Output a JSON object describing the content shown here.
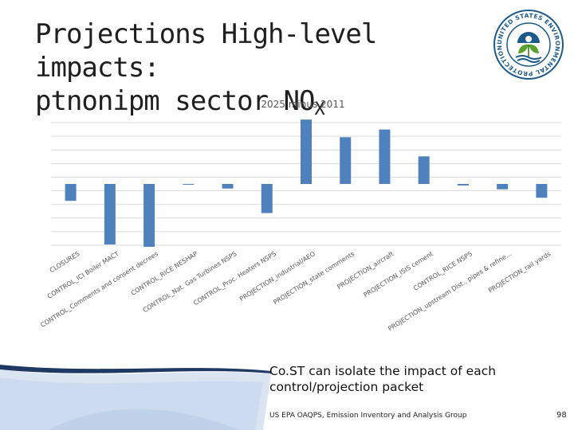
{
  "slide": {
    "title_line1": "Projections High-level impacts:",
    "title_line2": "ptnonipm sector NO",
    "title_subscript": "X",
    "caption": "Co.ST can isolate the impact of each control/projection packet",
    "footer": "US EPA OAQPS, Emission Inventory and Analysis Group",
    "page_number": "98",
    "logo_text": "UNITED STATES ENVIRONMENTAL PROTECTION AGENCY"
  },
  "colors": {
    "bar": "#4f81bd",
    "grid": "#d9d9d9"
  },
  "chart_data": {
    "type": "bar",
    "title": "2025 minus 2011",
    "xlabel": "",
    "ylabel": "",
    "ylim": [
      -8000,
      8000
    ],
    "grid": true,
    "categories": [
      "CLOSURES",
      "CONTROL_ICI Boiler MACT",
      "CONTROL_Comments and consent decrees",
      "CONTROL_RICE NESHAP",
      "CONTROL_Nat. Gas Turbines NSPS",
      "CONTROL_Proc. Heaters NSPS",
      "PROJECTION_industrial/AEO",
      "PROJECTION_state comments",
      "PROJECTION_aircraft",
      "PROJECTION_ISIS cement",
      "CONTROL_RICE NSPS",
      "PROJECTION_upstream Dist., pipes & refine...",
      "PROJECTION_rail yards"
    ],
    "values": [
      -2200,
      -7900,
      -8200,
      -100,
      -600,
      -3800,
      8400,
      6100,
      7100,
      3600,
      -200,
      -700,
      -1800
    ]
  }
}
